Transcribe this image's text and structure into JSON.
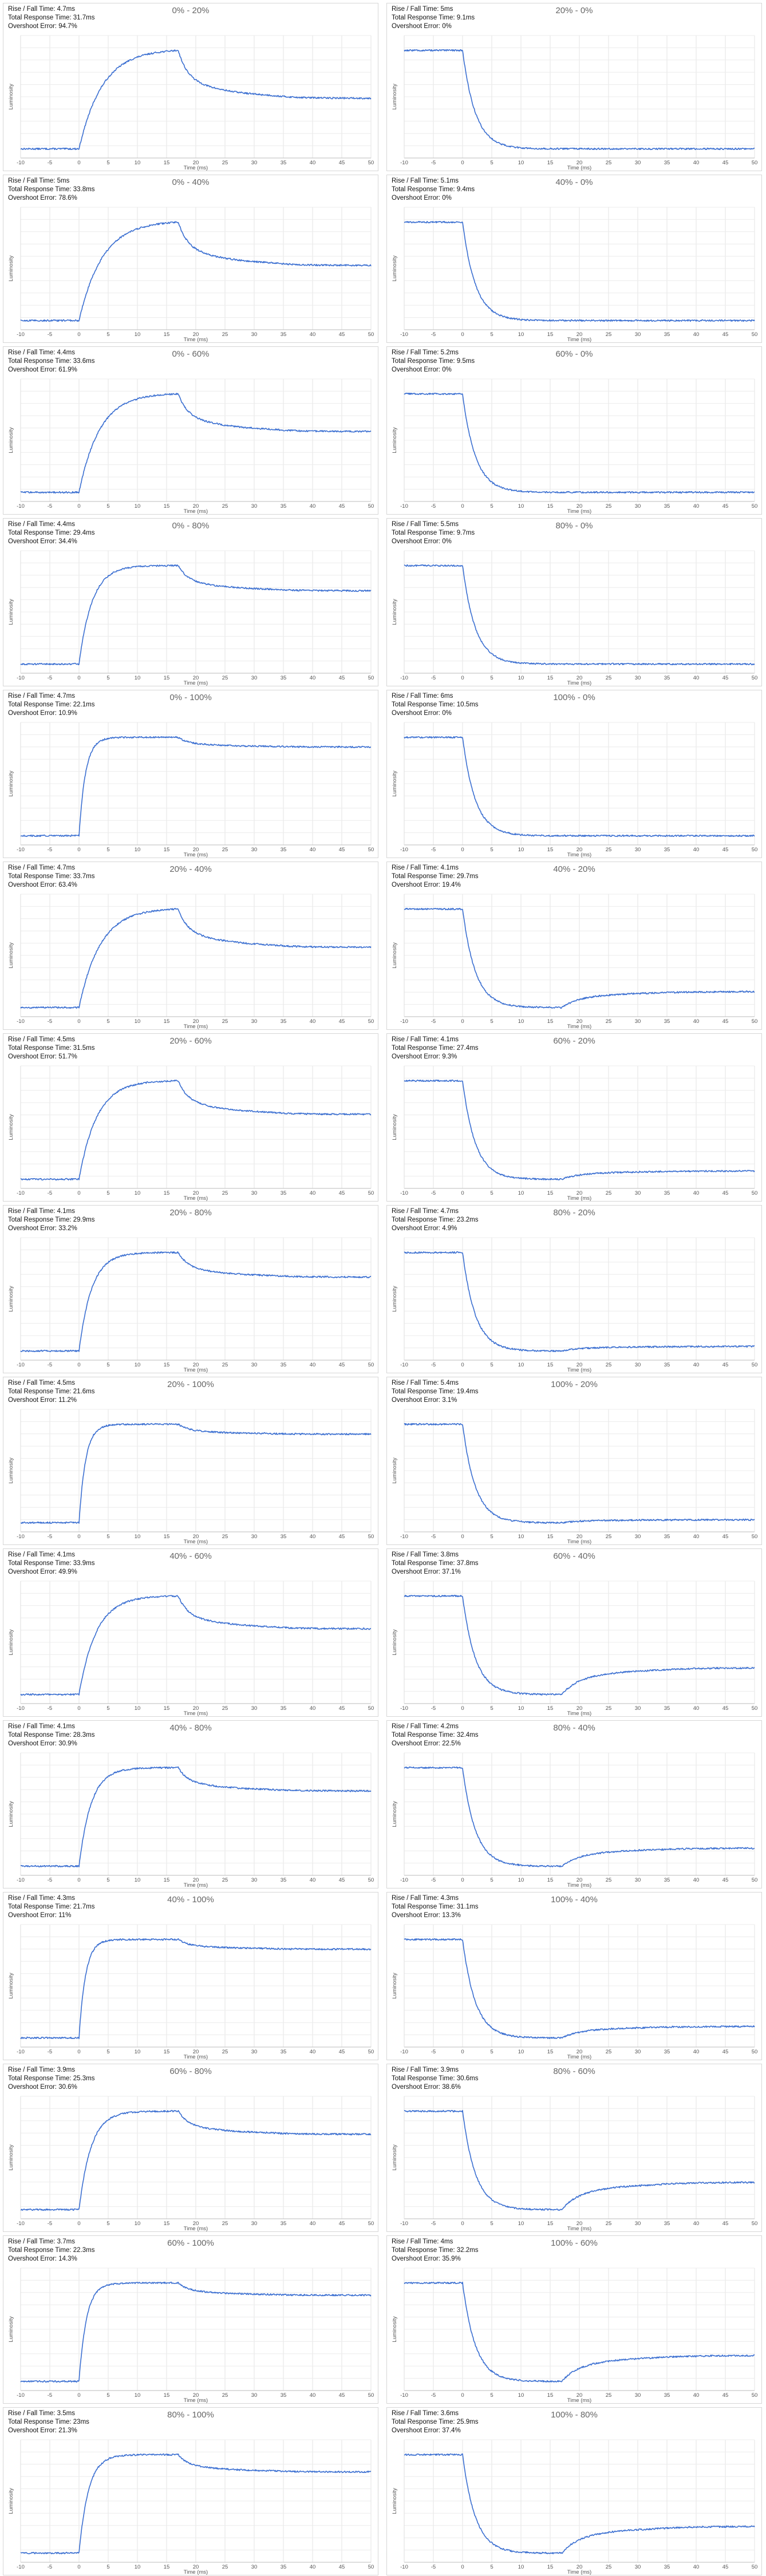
{
  "chart_data": {
    "type": "line",
    "xlabel": "Time (ms)",
    "ylabel": "Luminosity",
    "xlim": [
      -10,
      50
    ],
    "xticks": [
      -10,
      -5,
      0,
      5,
      10,
      15,
      20,
      25,
      30,
      35,
      40,
      45,
      50
    ],
    "grid": true,
    "line_color": "#3b6fd1",
    "stat_labels": {
      "rise": "Rise / Fall Time:",
      "total": "Total Response Time:",
      "overshoot": "Overshoot Error:"
    },
    "charts": [
      {
        "title": "0% - 20%",
        "rise": "4.7ms",
        "total": "31.7ms",
        "overshoot": "94.7%",
        "from": 0,
        "to": 20,
        "dir": "rise",
        "os": 0.947
      },
      {
        "title": "20% - 0%",
        "rise": "5ms",
        "total": "9.1ms",
        "overshoot": "0%",
        "from": 20,
        "to": 0,
        "dir": "fall",
        "os": 0
      },
      {
        "title": "0% - 40%",
        "rise": "5ms",
        "total": "33.8ms",
        "overshoot": "78.6%",
        "from": 0,
        "to": 40,
        "dir": "rise",
        "os": 0.786
      },
      {
        "title": "40% - 0%",
        "rise": "5.1ms",
        "total": "9.4ms",
        "overshoot": "0%",
        "from": 40,
        "to": 0,
        "dir": "fall",
        "os": 0
      },
      {
        "title": "0% - 60%",
        "rise": "4.4ms",
        "total": "33.6ms",
        "overshoot": "61.9%",
        "from": 0,
        "to": 60,
        "dir": "rise",
        "os": 0.619
      },
      {
        "title": "60% - 0%",
        "rise": "5.2ms",
        "total": "9.5ms",
        "overshoot": "0%",
        "from": 60,
        "to": 0,
        "dir": "fall",
        "os": 0
      },
      {
        "title": "0% - 80%",
        "rise": "4.4ms",
        "total": "29.4ms",
        "overshoot": "34.4%",
        "from": 0,
        "to": 80,
        "dir": "rise",
        "os": 0.344
      },
      {
        "title": "80% - 0%",
        "rise": "5.5ms",
        "total": "9.7ms",
        "overshoot": "0%",
        "from": 80,
        "to": 0,
        "dir": "fall",
        "os": 0
      },
      {
        "title": "0% - 100%",
        "rise": "4.7ms",
        "total": "22.1ms",
        "overshoot": "10.9%",
        "from": 0,
        "to": 100,
        "dir": "rise",
        "os": 0.109
      },
      {
        "title": "100% - 0%",
        "rise": "6ms",
        "total": "10.5ms",
        "overshoot": "0%",
        "from": 100,
        "to": 0,
        "dir": "fall",
        "os": 0
      },
      {
        "title": "20% - 40%",
        "rise": "4.7ms",
        "total": "33.7ms",
        "overshoot": "63.4%",
        "from": 20,
        "to": 40,
        "dir": "rise",
        "os": 0.634
      },
      {
        "title": "40% - 20%",
        "rise": "4.1ms",
        "total": "29.7ms",
        "overshoot": "19.4%",
        "from": 40,
        "to": 20,
        "dir": "fall",
        "os": 0.194
      },
      {
        "title": "20% - 60%",
        "rise": "4.5ms",
        "total": "31.5ms",
        "overshoot": "51.7%",
        "from": 20,
        "to": 60,
        "dir": "rise",
        "os": 0.517
      },
      {
        "title": "60% - 20%",
        "rise": "4.1ms",
        "total": "27.4ms",
        "overshoot": "9.3%",
        "from": 60,
        "to": 20,
        "dir": "fall",
        "os": 0.093
      },
      {
        "title": "20% - 80%",
        "rise": "4.1ms",
        "total": "29.9ms",
        "overshoot": "33.2%",
        "from": 20,
        "to": 80,
        "dir": "rise",
        "os": 0.332
      },
      {
        "title": "80% - 20%",
        "rise": "4.7ms",
        "total": "23.2ms",
        "overshoot": "4.9%",
        "from": 80,
        "to": 20,
        "dir": "fall",
        "os": 0.049
      },
      {
        "title": "20% - 100%",
        "rise": "4.5ms",
        "total": "21.6ms",
        "overshoot": "11.2%",
        "from": 20,
        "to": 100,
        "dir": "rise",
        "os": 0.112
      },
      {
        "title": "100% - 20%",
        "rise": "5.4ms",
        "total": "19.4ms",
        "overshoot": "3.1%",
        "from": 100,
        "to": 20,
        "dir": "fall",
        "os": 0.031
      },
      {
        "title": "40% - 60%",
        "rise": "4.1ms",
        "total": "33.9ms",
        "overshoot": "49.9%",
        "from": 40,
        "to": 60,
        "dir": "rise",
        "os": 0.499
      },
      {
        "title": "60% - 40%",
        "rise": "3.8ms",
        "total": "37.8ms",
        "overshoot": "37.1%",
        "from": 60,
        "to": 40,
        "dir": "fall",
        "os": 0.371
      },
      {
        "title": "40% - 80%",
        "rise": "4.1ms",
        "total": "28.3ms",
        "overshoot": "30.9%",
        "from": 40,
        "to": 80,
        "dir": "rise",
        "os": 0.309
      },
      {
        "title": "80% - 40%",
        "rise": "4.2ms",
        "total": "32.4ms",
        "overshoot": "22.5%",
        "from": 80,
        "to": 40,
        "dir": "fall",
        "os": 0.225
      },
      {
        "title": "40% - 100%",
        "rise": "4.3ms",
        "total": "21.7ms",
        "overshoot": "11%",
        "from": 40,
        "to": 100,
        "dir": "rise",
        "os": 0.11
      },
      {
        "title": "100% - 40%",
        "rise": "4.3ms",
        "total": "31.1ms",
        "overshoot": "13.3%",
        "from": 100,
        "to": 40,
        "dir": "fall",
        "os": 0.133
      },
      {
        "title": "60% - 80%",
        "rise": "3.9ms",
        "total": "25.3ms",
        "overshoot": "30.6%",
        "from": 60,
        "to": 80,
        "dir": "rise",
        "os": 0.306
      },
      {
        "title": "80% - 60%",
        "rise": "3.9ms",
        "total": "30.6ms",
        "overshoot": "38.6%",
        "from": 80,
        "to": 60,
        "dir": "fall",
        "os": 0.386
      },
      {
        "title": "60% - 100%",
        "rise": "3.7ms",
        "total": "22.3ms",
        "overshoot": "14.3%",
        "from": 60,
        "to": 100,
        "dir": "rise",
        "os": 0.143
      },
      {
        "title": "100% - 60%",
        "rise": "4ms",
        "total": "32.2ms",
        "overshoot": "35.9%",
        "from": 100,
        "to": 60,
        "dir": "fall",
        "os": 0.359
      },
      {
        "title": "80% - 100%",
        "rise": "3.5ms",
        "total": "23ms",
        "overshoot": "21.3%",
        "from": 80,
        "to": 100,
        "dir": "rise",
        "os": 0.213
      },
      {
        "title": "100% - 80%",
        "rise": "3.6ms",
        "total": "25.9ms",
        "overshoot": "37.4%",
        "from": 100,
        "to": 80,
        "dir": "fall",
        "os": 0.374
      }
    ]
  }
}
